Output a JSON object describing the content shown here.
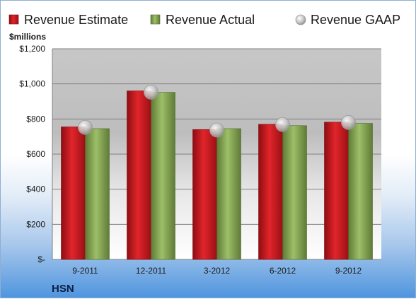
{
  "chart_data": {
    "type": "bar",
    "categories": [
      "9-2011",
      "12-2011",
      "3-2012",
      "6-2012",
      "9-2012"
    ],
    "series": [
      {
        "name": "Revenue Estimate",
        "kind": "bar",
        "color": "#c8161d",
        "values": [
          755,
          960,
          740,
          770,
          782
        ]
      },
      {
        "name": "Revenue Actual",
        "kind": "bar",
        "color": "#7e9e4e",
        "values": [
          745,
          952,
          745,
          762,
          775
        ]
      },
      {
        "name": "Revenue GAAP",
        "kind": "marker",
        "color": "#b8b8b8",
        "values": [
          752,
          953,
          737,
          768,
          780
        ]
      }
    ],
    "ylim": [
      0,
      1200
    ],
    "yticks": [
      0,
      200,
      400,
      600,
      800,
      1000,
      1200
    ],
    "ytick_labels": [
      "$-",
      "$200",
      "$400",
      "$600",
      "$800",
      "$1,000",
      "$1,200"
    ],
    "ylabel": "$millions",
    "xlabel": "",
    "title": "",
    "grid": true,
    "legend_position": "top"
  },
  "company": "HSN"
}
